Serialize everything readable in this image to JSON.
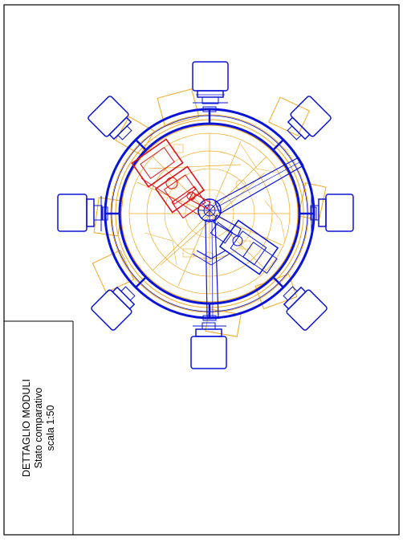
{
  "title_block": {
    "line1": "DETTAGLIO MODULI",
    "line2": "Stato comparativo",
    "line3": "scala 1:50"
  },
  "colors": {
    "frame": "#000000",
    "project": "#0a14d6",
    "existing": "#f0a81e",
    "demolition": "#e0141e",
    "background": "#ffffff"
  },
  "modules": {
    "count": 8,
    "arms_count": 3
  }
}
